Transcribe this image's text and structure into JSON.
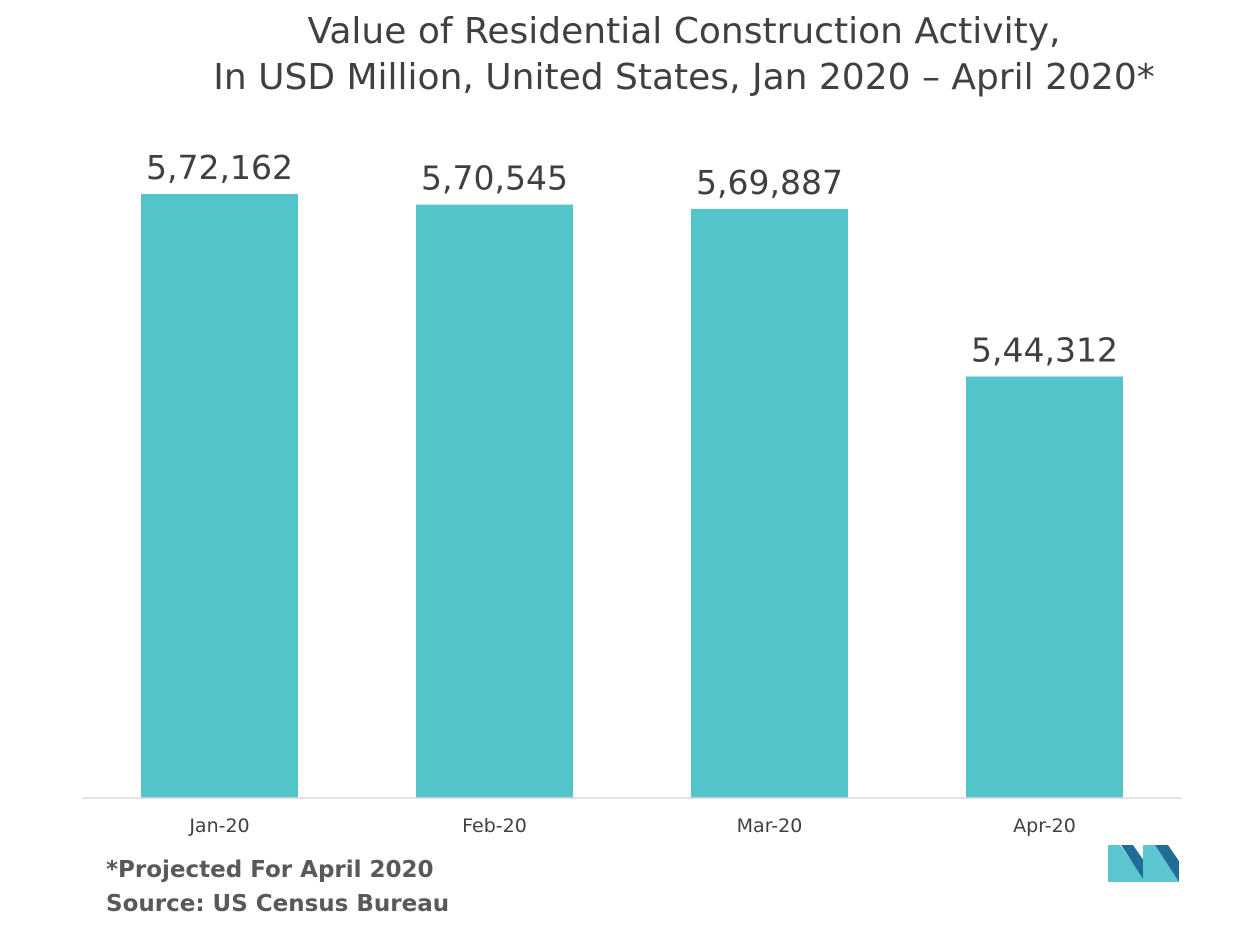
{
  "chart_data": {
    "type": "bar",
    "title": [
      "Value of Residential Construction Activity,",
      "In USD Million, United States, Jan 2020 – April 2020*"
    ],
    "categories": [
      "Jan-20",
      "Feb-20",
      "Mar-20",
      "Apr-20"
    ],
    "values": [
      572162,
      570545,
      569887,
      544312
    ],
    "value_labels": [
      "5,72,162",
      "5,70,545",
      "5,69,887",
      "5,44,312"
    ],
    "xlabel": "",
    "ylabel": "",
    "ylim": [
      480000,
      580000
    ],
    "grid": false,
    "legend": "none",
    "bar_color": "#52C4CA",
    "axis_color": "#D9D9D9"
  },
  "footnotes": {
    "note": "*Projected For April 2020",
    "source": "Source: US Census Bureau"
  },
  "logo": {
    "icon": "mordor-intelligence-logo-icon",
    "colors": [
      "#5BC6D2",
      "#1F6E96"
    ]
  }
}
